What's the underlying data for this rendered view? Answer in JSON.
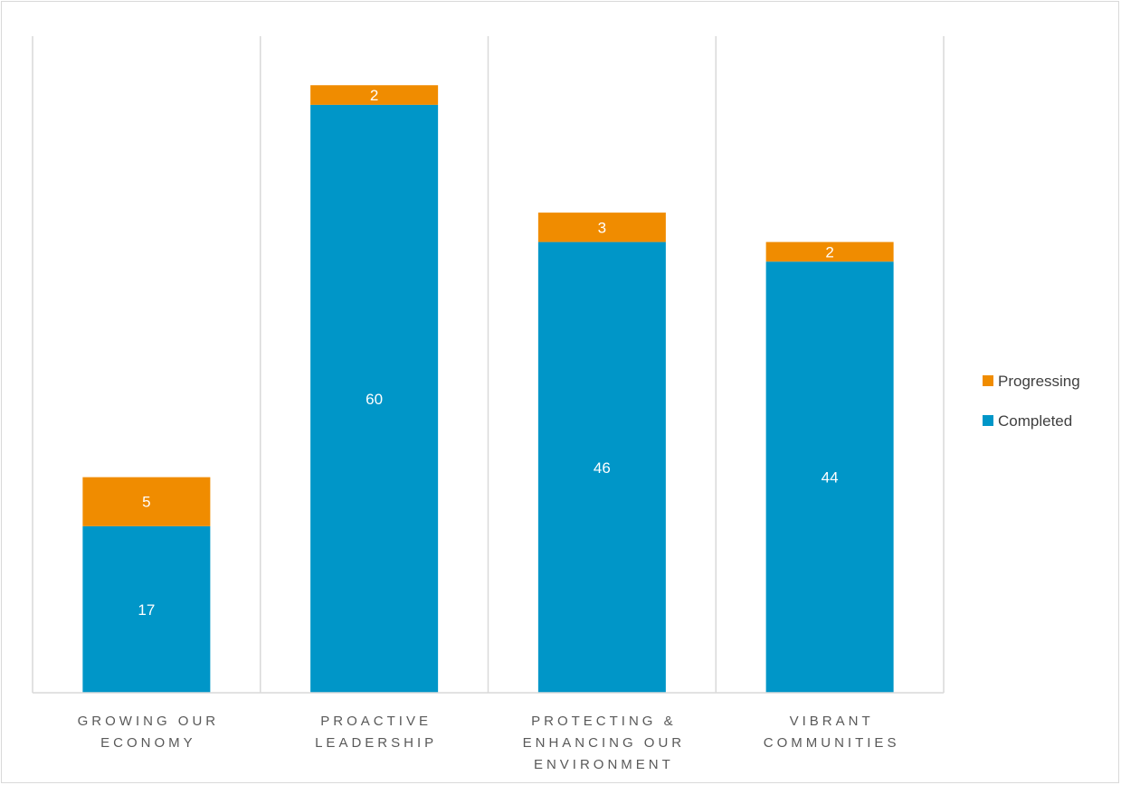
{
  "chart_data": {
    "type": "bar",
    "stacked": true,
    "categories": [
      [
        "GROWING OUR",
        "ECONOMY"
      ],
      [
        "PROACTIVE",
        "LEADERSHIP"
      ],
      [
        "PROTECTING &",
        "ENHANCING OUR",
        "ENVIRONMENT"
      ],
      [
        "VIBRANT",
        "COMMUNITIES"
      ]
    ],
    "series": [
      {
        "name": "Completed",
        "color": "#0096c8",
        "values": [
          17,
          60,
          46,
          44
        ]
      },
      {
        "name": "Progressing",
        "color": "#f08c00",
        "values": [
          5,
          2,
          3,
          2
        ]
      }
    ],
    "legend_order": [
      "Progressing",
      "Completed"
    ],
    "legend_position": "right",
    "ylim": [
      0,
      66
    ],
    "grid": "vertical category dividers",
    "xlabel": "",
    "ylabel": "",
    "title": ""
  }
}
